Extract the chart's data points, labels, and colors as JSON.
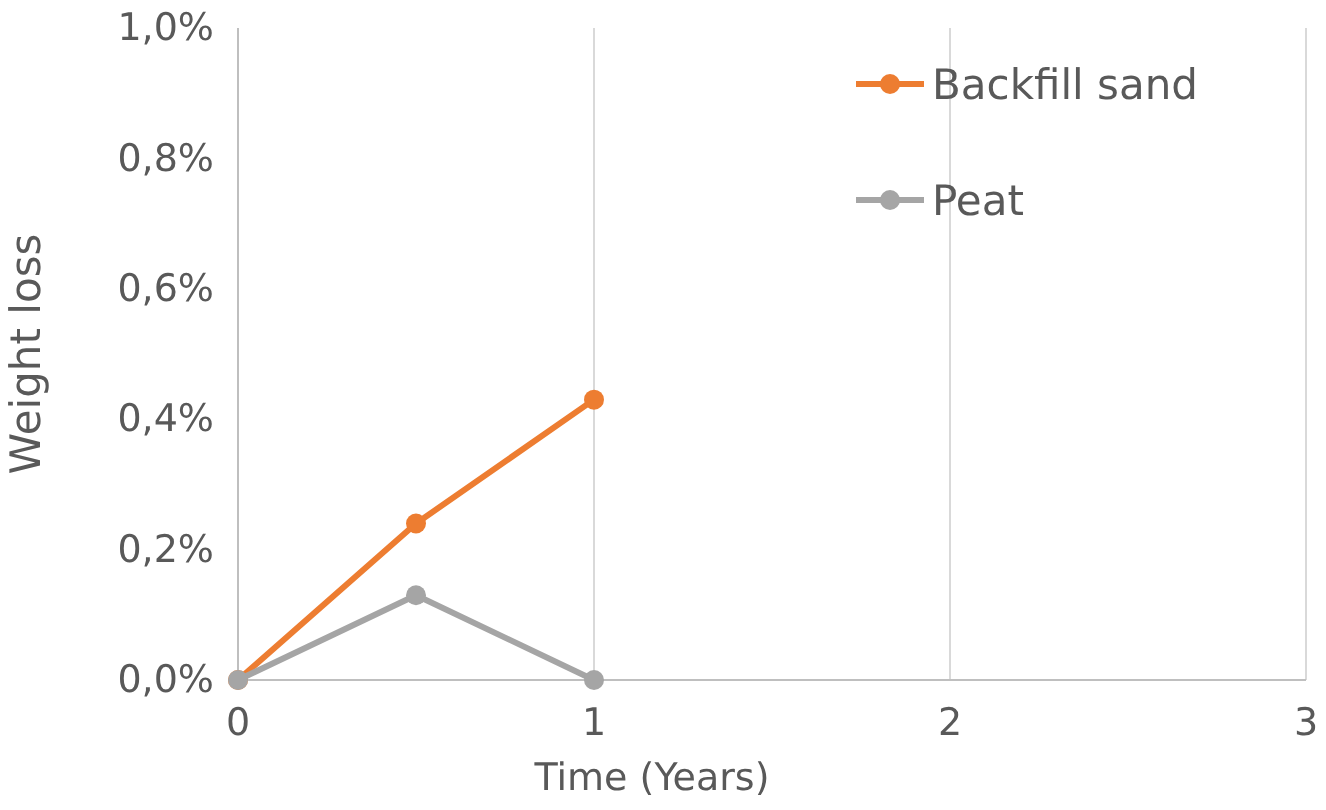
{
  "chart_data": {
    "type": "line",
    "xlabel": "Time (Years)",
    "ylabel": "Weight loss",
    "x": [
      0,
      0.5,
      1
    ],
    "series": [
      {
        "name": "Backfill sand",
        "color": "#ed7d31",
        "values": [
          0,
          0.24,
          0.43
        ]
      },
      {
        "name": "Peat",
        "color": "#a5a5a5",
        "values": [
          0,
          0.13,
          0
        ]
      }
    ],
    "xlim": [
      0,
      3
    ],
    "xticks": [
      0,
      1,
      2,
      3
    ],
    "ylim": [
      0,
      1
    ],
    "yticks": [
      {
        "value": 0,
        "label": "0,0%"
      },
      {
        "value": 0.2,
        "label": "0,2%"
      },
      {
        "value": 0.4,
        "label": "0,4%"
      },
      {
        "value": 0.6,
        "label": "0,6%"
      },
      {
        "value": 0.8,
        "label": "0,8%"
      },
      {
        "value": 1,
        "label": "1,0%"
      }
    ],
    "grid": "x",
    "legend": "top right",
    "marker": "circle",
    "line_style": "solid"
  }
}
